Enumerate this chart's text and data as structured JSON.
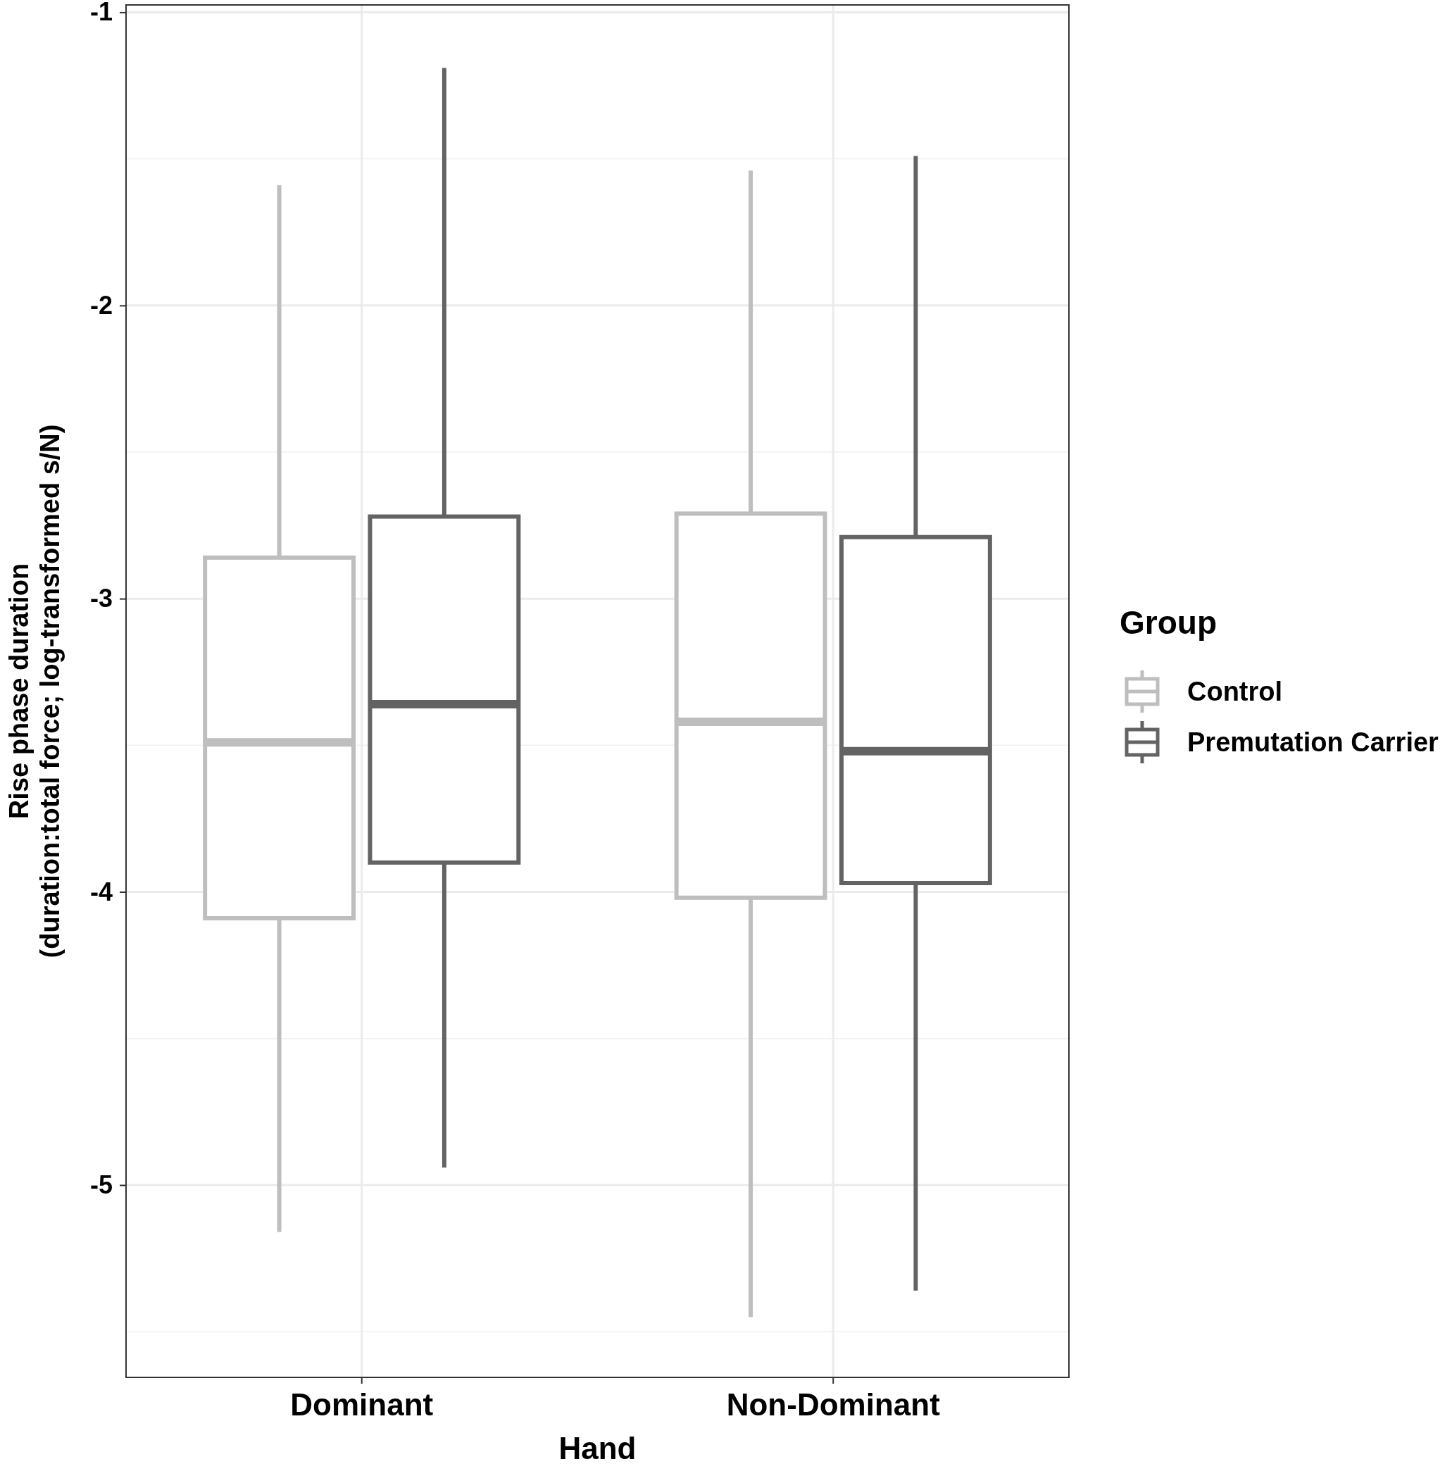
{
  "chart_data": {
    "type": "box",
    "xlabel": "Hand",
    "ylabel": "Rise phase duration\n(duration:total force; log-transformed s/N)",
    "legend_title": "Group",
    "categories": [
      "Dominant",
      "Non-Dominant"
    ],
    "ylim": [
      -5.656,
      -0.975
    ],
    "yticks": [
      -5,
      -4,
      -3,
      -2,
      -1
    ],
    "grid": true,
    "legend": "right",
    "series": [
      {
        "name": "Control",
        "color": "#bebebe",
        "boxes": [
          {
            "low": -5.16,
            "q1": -4.09,
            "median": -3.49,
            "q3": -2.86,
            "high": -1.59
          },
          {
            "low": -5.45,
            "q1": -4.02,
            "median": -3.42,
            "q3": -2.71,
            "high": -1.54
          }
        ]
      },
      {
        "name": "Premutation Carrier",
        "color": "#636363",
        "boxes": [
          {
            "low": -4.94,
            "q1": -3.9,
            "median": -3.36,
            "q3": -2.72,
            "high": -1.19
          },
          {
            "low": -5.36,
            "q1": -3.97,
            "median": -3.52,
            "q3": -2.79,
            "high": -1.49
          }
        ]
      }
    ]
  }
}
